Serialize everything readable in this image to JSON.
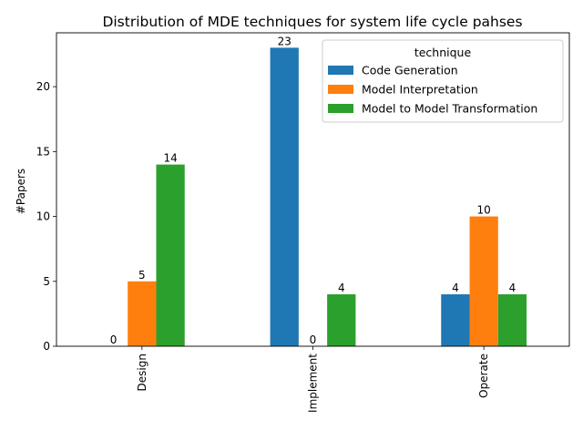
{
  "chart_data": {
    "type": "bar",
    "title": "Distribution of MDE techniques for system life cycle pahses",
    "xlabel": "",
    "ylabel": "#Papers",
    "categories": [
      "Design",
      "Implement",
      "Operate"
    ],
    "series": [
      {
        "name": "Code Generation",
        "values": [
          0,
          23,
          4
        ],
        "color": "#1f77b4"
      },
      {
        "name": "Model Interpretation",
        "values": [
          5,
          0,
          10
        ],
        "color": "#ff7f0e"
      },
      {
        "name": "Model to Model Transformation",
        "values": [
          14,
          4,
          4
        ],
        "color": "#2ca02c"
      }
    ],
    "ylim": [
      0,
      24.15
    ],
    "yticks": [
      0,
      5,
      10,
      15,
      20
    ],
    "grid": false,
    "legend": {
      "title": "technique",
      "placement": "top-right"
    }
  }
}
